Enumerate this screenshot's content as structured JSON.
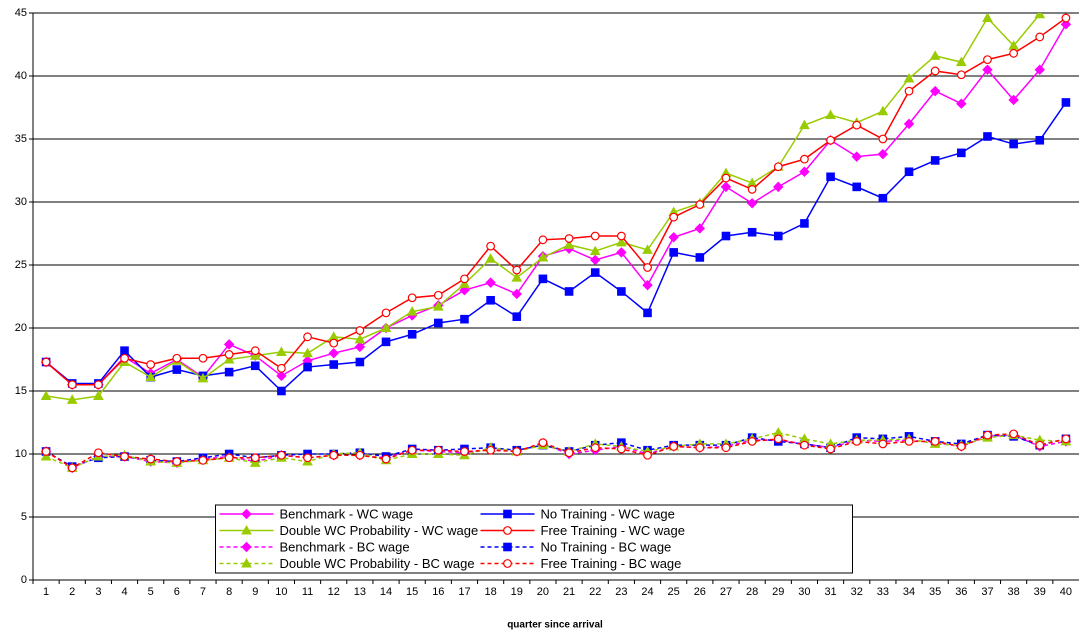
{
  "chart_data": {
    "type": "line",
    "x_label": "quarter since arrival",
    "categories": [
      1,
      2,
      3,
      4,
      5,
      6,
      7,
      8,
      9,
      10,
      11,
      12,
      13,
      14,
      15,
      16,
      17,
      18,
      19,
      20,
      21,
      22,
      23,
      24,
      25,
      26,
      27,
      28,
      29,
      30,
      31,
      32,
      33,
      34,
      35,
      36,
      37,
      38,
      39,
      40
    ],
    "ylim": [
      0,
      45
    ],
    "yticks": [
      0,
      5,
      10,
      15,
      20,
      25,
      30,
      35,
      40,
      45
    ],
    "grid": true,
    "legend_position": "lower center",
    "series": [
      {
        "name": "Benchmark - WC wage",
        "color": "#ff00ff",
        "marker": "diamond",
        "dash": false,
        "values": [
          17.3,
          15.5,
          15.5,
          17.7,
          16.4,
          17.5,
          16.1,
          18.7,
          17.8,
          16.2,
          17.4,
          18.0,
          18.5,
          20.0,
          21.0,
          21.8,
          23.0,
          23.6,
          22.7,
          25.7,
          26.3,
          25.4,
          26.0,
          23.4,
          27.2,
          27.9,
          31.2,
          29.9,
          31.2,
          32.4,
          34.9,
          33.6,
          33.8,
          36.2,
          38.8,
          37.8,
          40.5,
          38.1,
          40.5,
          44.1
        ]
      },
      {
        "name": "No Training - WC wage",
        "color": "#0000ff",
        "marker": "square",
        "dash": false,
        "values": [
          17.3,
          15.6,
          15.6,
          18.2,
          16.1,
          16.7,
          16.2,
          16.5,
          17.0,
          15.0,
          16.9,
          17.1,
          17.3,
          18.9,
          19.5,
          20.4,
          20.7,
          22.2,
          20.9,
          23.9,
          22.9,
          24.4,
          22.9,
          21.2,
          26.0,
          25.6,
          27.3,
          27.6,
          27.3,
          28.3,
          32.0,
          31.2,
          30.3,
          32.4,
          33.3,
          33.9,
          35.2,
          34.6,
          34.9,
          37.9
        ]
      },
      {
        "name": "Double WC Probability - WC wage",
        "color": "#99cc00",
        "marker": "triangle",
        "dash": false,
        "values": [
          14.6,
          14.3,
          14.6,
          17.3,
          16.1,
          17.4,
          16.0,
          17.5,
          17.8,
          18.1,
          18.0,
          19.3,
          19.1,
          20.0,
          21.3,
          21.7,
          23.5,
          25.5,
          24.0,
          25.6,
          26.6,
          26.1,
          26.8,
          26.2,
          29.2,
          29.9,
          32.3,
          31.5,
          32.8,
          36.1,
          36.9,
          36.3,
          37.2,
          39.8,
          41.6,
          41.1,
          44.6,
          42.4,
          44.9,
          47.0
        ]
      },
      {
        "name": "Free Training - WC wage",
        "color": "#ff0000",
        "marker": "circle",
        "dash": false,
        "values": [
          17.3,
          15.5,
          15.5,
          17.6,
          17.1,
          17.6,
          17.6,
          17.9,
          18.2,
          16.8,
          19.3,
          18.8,
          19.8,
          21.2,
          22.4,
          22.6,
          23.9,
          26.5,
          24.6,
          27.0,
          27.1,
          27.3,
          27.3,
          24.8,
          28.8,
          29.8,
          31.9,
          31.0,
          32.8,
          33.4,
          34.9,
          36.1,
          35.0,
          38.8,
          40.4,
          40.1,
          41.3,
          41.8,
          43.1,
          44.6
        ]
      },
      {
        "name": "Benchmark - BC wage",
        "color": "#ff00ff",
        "marker": "diamond",
        "dash": true,
        "values": [
          10.2,
          8.9,
          9.8,
          9.8,
          9.4,
          9.3,
          9.6,
          9.8,
          9.4,
          9.9,
          9.7,
          9.9,
          9.9,
          9.7,
          10.3,
          10.2,
          10.1,
          10.4,
          10.2,
          10.8,
          10.0,
          10.3,
          10.6,
          10.0,
          10.6,
          10.5,
          10.6,
          11.1,
          11.1,
          10.8,
          10.5,
          11.1,
          11.0,
          11.1,
          10.9,
          10.6,
          11.4,
          11.5,
          10.6,
          11.0
        ]
      },
      {
        "name": "No Training - BC wage",
        "color": "#0000ff",
        "marker": "square",
        "dash": true,
        "values": [
          10.2,
          9.0,
          9.7,
          9.8,
          9.5,
          9.4,
          9.7,
          10.0,
          9.7,
          9.9,
          10.0,
          10.0,
          10.1,
          9.8,
          10.4,
          10.3,
          10.4,
          10.5,
          10.3,
          10.7,
          10.2,
          10.7,
          10.9,
          10.3,
          10.7,
          10.7,
          10.7,
          11.3,
          11.0,
          10.8,
          10.5,
          11.3,
          11.2,
          11.4,
          11.0,
          10.8,
          11.5,
          11.4,
          10.7,
          11.2
        ]
      },
      {
        "name": "Double WC Probability - BC wage",
        "color": "#99cc00",
        "marker": "triangle",
        "dash": true,
        "values": [
          9.8,
          8.9,
          9.8,
          9.9,
          9.4,
          9.3,
          9.5,
          9.7,
          9.3,
          9.7,
          9.4,
          10.0,
          10.1,
          9.5,
          10.0,
          10.0,
          9.9,
          10.5,
          10.2,
          10.7,
          10.2,
          10.8,
          10.6,
          10.2,
          10.6,
          10.8,
          10.8,
          11.2,
          11.7,
          11.2,
          10.8,
          11.1,
          11.1,
          11.2,
          10.8,
          10.7,
          11.3,
          11.5,
          11.1,
          11.0
        ]
      },
      {
        "name": "Free Training - BC wage",
        "color": "#ff0000",
        "marker": "circle",
        "dash": true,
        "values": [
          10.2,
          8.9,
          10.1,
          9.8,
          9.6,
          9.4,
          9.5,
          9.7,
          9.7,
          9.9,
          9.7,
          9.9,
          9.9,
          9.6,
          10.3,
          10.3,
          10.2,
          10.3,
          10.2,
          10.9,
          10.1,
          10.5,
          10.4,
          9.9,
          10.6,
          10.5,
          10.5,
          11.0,
          11.2,
          10.7,
          10.4,
          11.0,
          10.8,
          11.0,
          11.0,
          10.6,
          11.5,
          11.6,
          10.7,
          11.2
        ]
      }
    ]
  }
}
